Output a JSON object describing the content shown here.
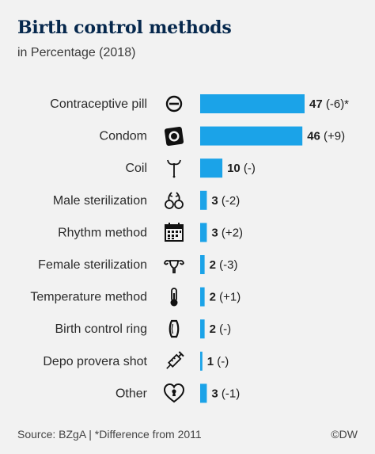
{
  "title": "Birth control methods",
  "subtitle": "in Percentage (2018)",
  "footer": {
    "source": "Source: BZgA | *Difference from 2011",
    "credit": "©DW"
  },
  "colors": {
    "bar": "#1ba3e8",
    "title": "#06284d",
    "background": "#f2f2f2"
  },
  "chart_data": {
    "type": "bar",
    "orientation": "horizontal",
    "categories": [
      "Contraceptive pill",
      "Condom",
      "Coil",
      "Male sterilization",
      "Rhythm method",
      "Female sterilization",
      "Temperature method",
      "Birth control ring",
      "Depo provera shot",
      "Other"
    ],
    "values": [
      47,
      46,
      10,
      3,
      3,
      2,
      2,
      2,
      1,
      3
    ],
    "differences": [
      "(-6)*",
      "(+9)",
      "(-)",
      "(-2)",
      "(+2)",
      "(-3)",
      "(+1)",
      "(-)",
      "(-)",
      "(-1)"
    ],
    "icons": [
      "pill-icon",
      "condom-icon",
      "coil-icon",
      "male-sterilization-icon",
      "calendar-icon",
      "uterus-icon",
      "thermometer-icon",
      "ring-icon",
      "syringe-icon",
      "heart-lock-icon"
    ],
    "xlim": [
      0,
      47
    ]
  }
}
